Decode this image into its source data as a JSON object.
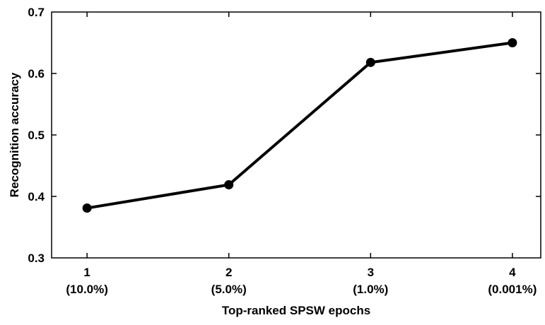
{
  "chart_data": {
    "type": "line",
    "title": "",
    "xlabel": "Top-ranked SPSW epochs",
    "ylabel": "Recognition accuracy",
    "categories": [
      "1",
      "2",
      "3",
      "4"
    ],
    "category_sublabels": [
      "(10.0%)",
      "(5.0%)",
      "(1.0%)",
      "(0.001%)"
    ],
    "series": [
      {
        "values": [
          0.381,
          0.419,
          0.618,
          0.65
        ]
      }
    ],
    "xlim": [
      0.75,
      4.2
    ],
    "ylim": [
      0.3,
      0.7
    ],
    "yticks": [
      0.3,
      0.4,
      0.5,
      0.6,
      0.7
    ],
    "ytick_labels": [
      "0.3",
      "0.4",
      "0.5",
      "0.6",
      "0.7"
    ],
    "grid": false,
    "legend": "none",
    "colors": {
      "line": "#000000",
      "marker": "#000000",
      "axes": "#000000",
      "background": "#ffffff"
    }
  }
}
